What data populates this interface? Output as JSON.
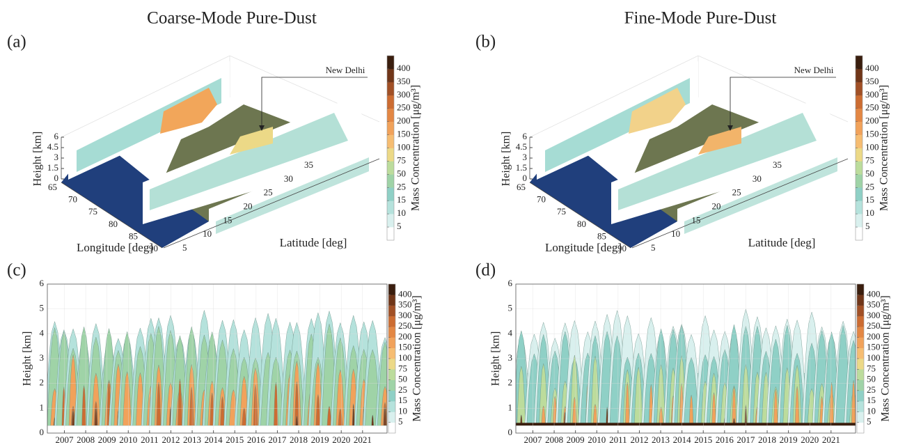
{
  "chart_data": [
    {
      "type": "3d-map",
      "panel": "(a)",
      "title": "Coarse-Mode Pure-Dust",
      "zlabel": "Height [km]",
      "zlim": [
        0,
        6
      ],
      "zticks": [
        0,
        1.5,
        3,
        4.5,
        6
      ],
      "xlabel": "Longitude [deg]",
      "xlim": [
        65,
        90
      ],
      "xticks": [
        65,
        70,
        75,
        80,
        85,
        90
      ],
      "ylabel": "Latitude [deg]",
      "ylim": [
        5,
        35
      ],
      "yticks": [
        5,
        10,
        15,
        20,
        25,
        30,
        35
      ],
      "annotation": "New Delhi",
      "colorbar": {
        "label": "Mass Concentration [μg/m³]",
        "ticks": [
          5,
          10,
          15,
          25,
          50,
          75,
          100,
          150,
          200,
          250,
          300,
          350,
          400
        ],
        "colors": [
          "#ffffff",
          "#d9f0ee",
          "#b5e2dc",
          "#8fd0c6",
          "#9fd3a7",
          "#bcdc9c",
          "#ecd987",
          "#f6bd72",
          "#f1a25b",
          "#e38744",
          "#cc6c32",
          "#a15026",
          "#703619",
          "#3a1e0e"
        ]
      }
    },
    {
      "type": "3d-map",
      "panel": "(b)",
      "title": "Fine-Mode Pure-Dust",
      "zlabel": "Height [km]",
      "zlim": [
        0,
        6
      ],
      "zticks": [
        0,
        1.5,
        3,
        4.5,
        6
      ],
      "xlabel": "Longitude [deg]",
      "xlim": [
        65,
        90
      ],
      "xticks": [
        65,
        70,
        75,
        80,
        85,
        90
      ],
      "ylabel": "Latitude [deg]",
      "ylim": [
        5,
        35
      ],
      "yticks": [
        5,
        10,
        15,
        20,
        25,
        30,
        35
      ],
      "annotation": "New Delhi",
      "colorbar": {
        "label": "Mass Concentration [μg/m³]",
        "ticks": [
          5,
          10,
          15,
          25,
          50,
          75,
          100,
          150,
          200,
          250,
          300,
          350,
          400
        ],
        "colors": [
          "#ffffff",
          "#d9f0ee",
          "#b5e2dc",
          "#8fd0c6",
          "#9fd3a7",
          "#bcdc9c",
          "#ecd987",
          "#f6bd72",
          "#f1a25b",
          "#e38744",
          "#cc6c32",
          "#a15026",
          "#703619",
          "#3a1e0e"
        ]
      }
    },
    {
      "type": "contour",
      "panel": "(c)",
      "ylabel": "Height [km]",
      "ylim": [
        0,
        6
      ],
      "yticks": [
        0,
        1,
        2,
        3,
        4,
        5,
        6
      ],
      "xlim": [
        2006.2,
        2022.15
      ],
      "xticks": [
        2007,
        2008,
        2009,
        2010,
        2011,
        2012,
        2013,
        2014,
        2015,
        2016,
        2017,
        2018,
        2019,
        2020,
        2021
      ],
      "grid": true,
      "colorbar": {
        "label": "Mass Concentration [μg/m³]",
        "ticks": [
          5,
          10,
          15,
          25,
          50,
          75,
          100,
          150,
          200,
          250,
          300,
          350,
          400
        ],
        "colors": [
          "#ffffff",
          "#d9f0ee",
          "#b5e2dc",
          "#8fd0c6",
          "#9fd3a7",
          "#bcdc9c",
          "#ecd987",
          "#f6bd72",
          "#f1a25b",
          "#e38744",
          "#cc6c32",
          "#a15026",
          "#703619",
          "#3a1e0e"
        ]
      }
    },
    {
      "type": "contour",
      "panel": "(d)",
      "ylabel": "Height [km]",
      "ylim": [
        0,
        6
      ],
      "yticks": [
        0,
        1,
        2,
        3,
        4,
        5,
        6
      ],
      "xlim": [
        2006.2,
        2022.15
      ],
      "xticks": [
        2007,
        2008,
        2009,
        2010,
        2011,
        2012,
        2013,
        2014,
        2015,
        2016,
        2017,
        2018,
        2019,
        2020,
        2021
      ],
      "grid": true,
      "colorbar": {
        "label": "Mass Concentration [μg/m³]",
        "ticks": [
          5,
          10,
          15,
          25,
          50,
          75,
          100,
          150,
          200,
          250,
          300,
          350,
          400
        ],
        "colors": [
          "#ffffff",
          "#d9f0ee",
          "#b5e2dc",
          "#8fd0c6",
          "#9fd3a7",
          "#bcdc9c",
          "#ecd987",
          "#f6bd72",
          "#f1a25b",
          "#e38744",
          "#cc6c32",
          "#a15026",
          "#703619",
          "#3a1e0e"
        ]
      }
    }
  ]
}
